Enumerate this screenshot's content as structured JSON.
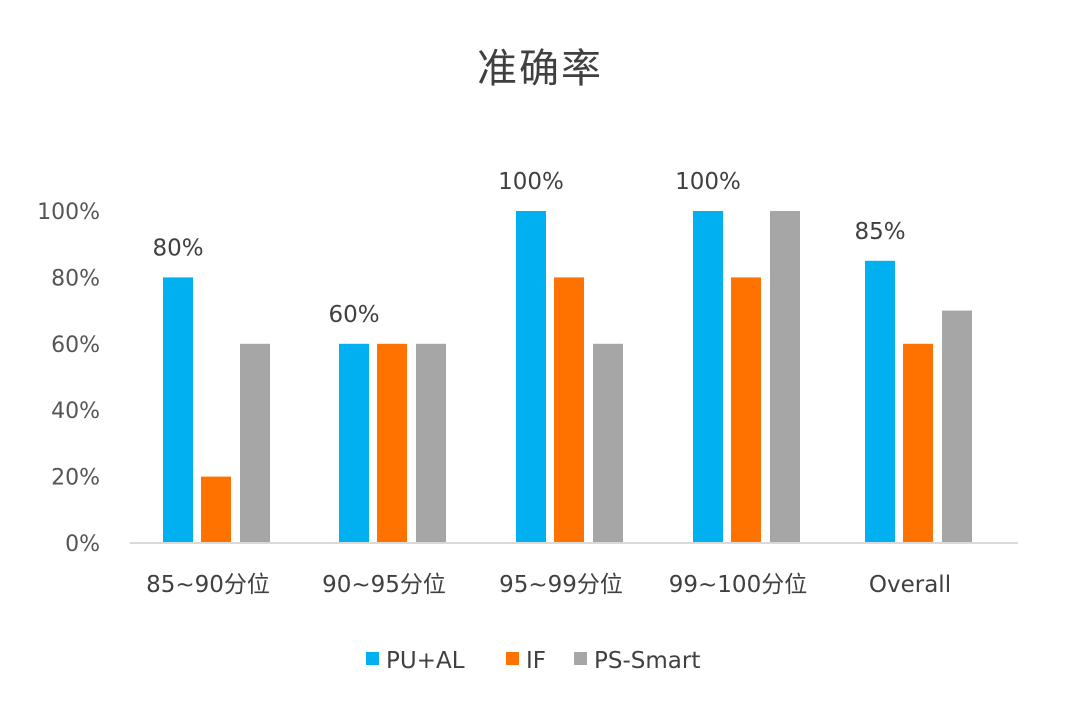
{
  "chart_data": {
    "type": "bar",
    "title": "准确率",
    "xlabel": "",
    "ylabel": "",
    "categories": [
      "85~90分位",
      "90~95分位",
      "95~99分位",
      "99~100分位",
      "Overall"
    ],
    "series": [
      {
        "name": "PU+AL",
        "color": "#00b0f0",
        "values": [
          80,
          60,
          100,
          100,
          85
        ]
      },
      {
        "name": "IF",
        "color": "#ff7200",
        "values": [
          20,
          60,
          80,
          80,
          60
        ]
      },
      {
        "name": "PS-Smart",
        "color": "#a6a6a6",
        "values": [
          60,
          60,
          60,
          100,
          70
        ]
      }
    ],
    "ylim": [
      0,
      100
    ],
    "yticks": [
      0,
      20,
      40,
      60,
      80,
      100
    ],
    "ytick_labels": [
      "0%",
      "20%",
      "40%",
      "60%",
      "80%",
      "100%"
    ],
    "data_labels": [
      {
        "category_index": 0,
        "series_index": 0,
        "text": "80%"
      },
      {
        "category_index": 1,
        "series_index": 0,
        "text": "60%"
      },
      {
        "category_index": 2,
        "series_index": 0,
        "text": "100%"
      },
      {
        "category_index": 3,
        "series_index": 0,
        "text": "100%"
      },
      {
        "category_index": 4,
        "series_index": 0,
        "text": "85%"
      }
    ],
    "grid": false,
    "legend": "bottom"
  }
}
